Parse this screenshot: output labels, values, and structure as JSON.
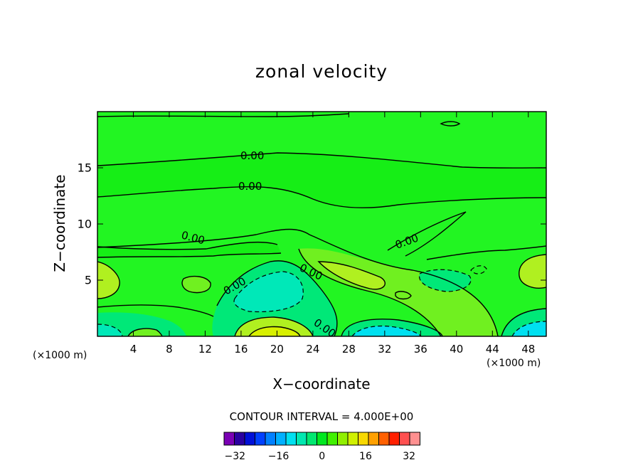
{
  "chart_data": {
    "type": "heatmap",
    "title": "zonal velocity",
    "xlabel": "X−coordinate",
    "ylabel": "Z−coordinate",
    "x_unit_left": "(×1000 m)",
    "x_unit_right": "(×1000 m)",
    "xlim": [
      0,
      50
    ],
    "ylim": [
      0,
      20
    ],
    "x_ticks": [
      4,
      8,
      12,
      16,
      20,
      24,
      28,
      32,
      36,
      40,
      44,
      48
    ],
    "x_tick_labels": [
      "4",
      "8",
      "12",
      "16",
      "20",
      "24",
      "28",
      "32",
      "36",
      "40",
      "44",
      "48"
    ],
    "y_ticks": [
      5,
      10,
      15
    ],
    "y_tick_labels": [
      "5",
      "10",
      "15"
    ],
    "contour_interval_label": "CONTOUR INTERVAL = 4.000E+00",
    "contour_interval": 4.0,
    "contour_labels": [
      "0.00",
      "0.00",
      "0.00",
      "0.00",
      "0.00",
      "0.00",
      "0.00"
    ],
    "colorbar": {
      "levels": [
        -36,
        -32,
        -28,
        -24,
        -20,
        -16,
        -12,
        -8,
        -4,
        0,
        4,
        8,
        12,
        16,
        20,
        24,
        28,
        32,
        36
      ],
      "tick_values": [
        -32,
        -16,
        0,
        16,
        32
      ],
      "tick_labels": [
        "−32",
        "−16",
        "0",
        "16",
        "32"
      ],
      "colors": [
        "#7a00b4",
        "#2a00a0",
        "#0010d8",
        "#0040ff",
        "#0080ff",
        "#00b0ff",
        "#00e0f0",
        "#00e8b0",
        "#00e870",
        "#00e820",
        "#40f000",
        "#90f000",
        "#d0f000",
        "#f8d800",
        "#ffa000",
        "#ff6000",
        "#ff2000",
        "#ff5050",
        "#ff9090"
      ]
    },
    "colors": {
      "background_field": "#22f522",
      "zero_band": "#16ee16",
      "weak_positive": "#70f020",
      "moderate_positive": "#b0f020",
      "strong_positive": "#d8f000",
      "weak_negative": "#00e878",
      "moderate_negative": "#00e8b8",
      "strong_negative": "#00e0f0"
    }
  }
}
